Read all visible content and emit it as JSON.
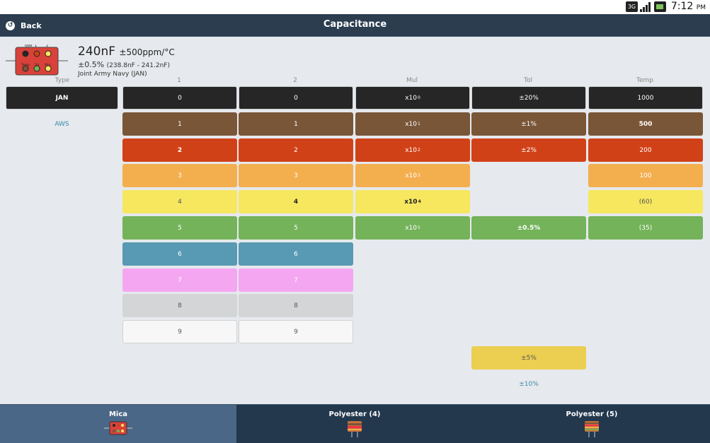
{
  "status": {
    "time": "7:12",
    "ampm": "PM",
    "icons": [
      "3g-icon",
      "signal-icon",
      "battery-icon"
    ]
  },
  "header": {
    "back_label": "Back",
    "title": "Capacitance"
  },
  "icon_labels": {
    "type": "Type",
    "b1": "1",
    "b2": "2",
    "temp": "Temp",
    "tol": "Tol",
    "mul": "Mul"
  },
  "summary": {
    "value": "240nF",
    "tempco": "±500ppm/°C",
    "tolerance": "±0.5%",
    "range": "(238.8nF - 241.2nF)",
    "type_name": "Joint Army Navy (JAN)"
  },
  "columns": [
    {
      "header": "Type",
      "cells": [
        {
          "label": "JAN",
          "bg": "#262626",
          "fg": "#ffffff",
          "selected": true
        },
        {
          "label": "AWS",
          "bg": "#e6e9ed",
          "fg": "#3b8aa8",
          "selected": false
        }
      ]
    },
    {
      "header": "1",
      "cells": [
        {
          "label": "0",
          "bg": "#262626",
          "fg": "#ffffff"
        },
        {
          "label": "1",
          "bg": "#7a5638",
          "fg": "#ffffff"
        },
        {
          "label": "2",
          "bg": "#d14118",
          "fg": "#ffffff",
          "selected": true
        },
        {
          "label": "3",
          "bg": "#f3ae4e",
          "fg": "#ffffff"
        },
        {
          "label": "4",
          "bg": "#f6e75f",
          "fg": "#555555"
        },
        {
          "label": "5",
          "bg": "#74b35a",
          "fg": "#ffffff"
        },
        {
          "label": "6",
          "bg": "#5899b3",
          "fg": "#ffffff"
        },
        {
          "label": "7",
          "bg": "#f5a6f1",
          "fg": "#ffffff"
        },
        {
          "label": "8",
          "bg": "#d4d5d6",
          "fg": "#555555"
        },
        {
          "label": "9",
          "bg": "#f7f7f7",
          "fg": "#555555"
        }
      ]
    },
    {
      "header": "2",
      "cells": [
        {
          "label": "0",
          "bg": "#262626",
          "fg": "#ffffff"
        },
        {
          "label": "1",
          "bg": "#7a5638",
          "fg": "#ffffff"
        },
        {
          "label": "2",
          "bg": "#d14118",
          "fg": "#ffffff"
        },
        {
          "label": "3",
          "bg": "#f3ae4e",
          "fg": "#ffffff"
        },
        {
          "label": "4",
          "bg": "#f6e75f",
          "fg": "#222222",
          "selected": true
        },
        {
          "label": "5",
          "bg": "#74b35a",
          "fg": "#ffffff"
        },
        {
          "label": "6",
          "bg": "#5899b3",
          "fg": "#ffffff"
        },
        {
          "label": "7",
          "bg": "#f5a6f1",
          "fg": "#ffffff"
        },
        {
          "label": "8",
          "bg": "#d4d5d6",
          "fg": "#555555"
        },
        {
          "label": "9",
          "bg": "#f7f7f7",
          "fg": "#555555"
        }
      ]
    },
    {
      "header": "Mul",
      "cells": [
        {
          "label": "x10",
          "exp": "0",
          "bg": "#262626",
          "fg": "#ffffff"
        },
        {
          "label": "x10",
          "exp": "1",
          "bg": "#7a5638",
          "fg": "#ffffff"
        },
        {
          "label": "x10",
          "exp": "2",
          "bg": "#d14118",
          "fg": "#ffffff"
        },
        {
          "label": "x10",
          "exp": "3",
          "bg": "#f3ae4e",
          "fg": "#ffffff"
        },
        {
          "label": "x10",
          "exp": "4",
          "bg": "#f6e75f",
          "fg": "#222222",
          "selected": true
        },
        {
          "label": "x10",
          "exp": "5",
          "bg": "#74b35a",
          "fg": "#ffffff"
        }
      ]
    },
    {
      "header": "Tol",
      "cells": [
        {
          "label": "±20%",
          "bg": "#262626",
          "fg": "#ffffff"
        },
        {
          "label": "±1%",
          "bg": "#7a5638",
          "fg": "#ffffff"
        },
        {
          "label": "±2%",
          "bg": "#d14118",
          "fg": "#ffffff"
        },
        null,
        null,
        {
          "label": "±0.5%",
          "bg": "#74b35a",
          "fg": "#ffffff",
          "selected": true
        },
        null,
        null,
        null,
        null,
        {
          "label": "±5%",
          "bg": "#ecce50",
          "fg": "#555555"
        },
        {
          "label": "±10%",
          "bg": "#e6e9ed",
          "fg": "#3b8aa8"
        }
      ]
    },
    {
      "header": "Temp",
      "cells": [
        {
          "label": "1000",
          "bg": "#262626",
          "fg": "#ffffff"
        },
        {
          "label": "500",
          "bg": "#7a5638",
          "fg": "#ffffff",
          "selected": true
        },
        {
          "label": "200",
          "bg": "#d14118",
          "fg": "#ffffff"
        },
        {
          "label": "100",
          "bg": "#f3ae4e",
          "fg": "#ffffff"
        },
        {
          "label": "(60)",
          "bg": "#f6e75f",
          "fg": "#555555"
        },
        {
          "label": "(35)",
          "bg": "#74b35a",
          "fg": "#ffffff"
        }
      ]
    }
  ],
  "bottom_tabs": [
    {
      "label": "Mica",
      "active": true
    },
    {
      "label": "Polyester (4)",
      "active": false
    },
    {
      "label": "Polyester (5)",
      "active": false
    }
  ]
}
